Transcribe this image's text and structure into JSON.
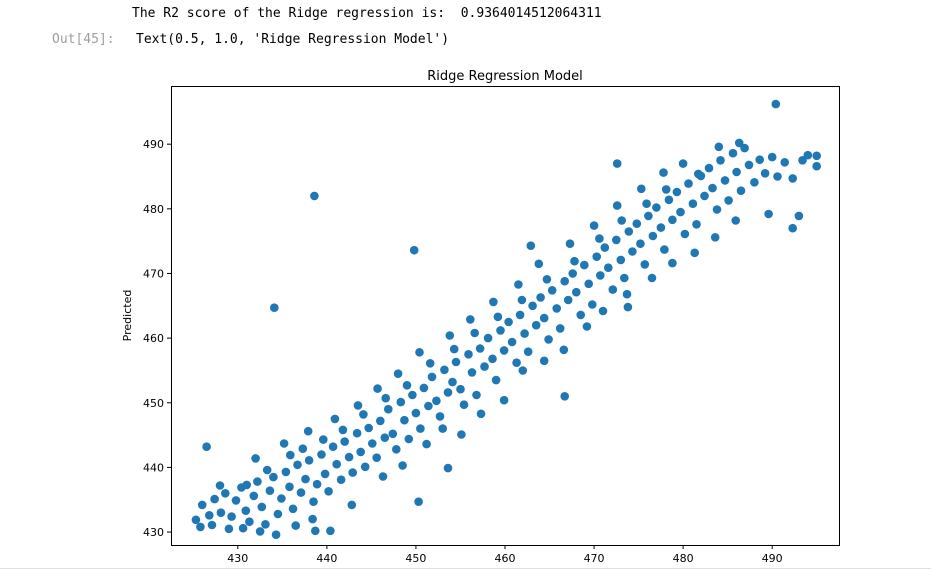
{
  "cell": {
    "stream_output": "The R2 score of the Ridge regression is:  0.9364014512064311",
    "out_prompt": "Out[45]:",
    "repr_output": "Text(0.5, 1.0, 'Ridge Regression Model')"
  },
  "chart_data": {
    "type": "scatter",
    "title": "Ridge Regression Model",
    "xlabel": "",
    "ylabel": "Predicted",
    "xlim": [
      422.5,
      497.5
    ],
    "ylim": [
      428.0,
      499.0
    ],
    "xticks": [
      430,
      440,
      450,
      460,
      470,
      480,
      490
    ],
    "yticks": [
      430,
      440,
      450,
      460,
      470,
      480,
      490
    ],
    "grid": false,
    "marker_color": "#1f77b4",
    "series": [
      {
        "points": [
          [
            425.3,
            431.9
          ],
          [
            426.0,
            434.2
          ],
          [
            426.8,
            432.6
          ],
          [
            427.4,
            435.1
          ],
          [
            428.1,
            433.0
          ],
          [
            428.6,
            436.0
          ],
          [
            429.3,
            432.4
          ],
          [
            429.8,
            434.9
          ],
          [
            430.4,
            436.9
          ],
          [
            430.9,
            433.3
          ],
          [
            431.3,
            431.6
          ],
          [
            431.8,
            435.6
          ],
          [
            432.2,
            437.8
          ],
          [
            432.7,
            433.9
          ],
          [
            433.1,
            431.2
          ],
          [
            433.6,
            436.4
          ],
          [
            434.0,
            438.5
          ],
          [
            434.5,
            432.8
          ],
          [
            434.9,
            435.2
          ],
          [
            435.4,
            439.3
          ],
          [
            435.8,
            437.0
          ],
          [
            436.2,
            433.6
          ],
          [
            436.7,
            440.4
          ],
          [
            437.1,
            436.1
          ],
          [
            437.6,
            438.2
          ],
          [
            438.0,
            441.1
          ],
          [
            438.5,
            434.7
          ],
          [
            438.9,
            437.4
          ],
          [
            439.4,
            442.0
          ],
          [
            439.8,
            439.0
          ],
          [
            440.2,
            436.3
          ],
          [
            440.7,
            443.2
          ],
          [
            441.1,
            440.5
          ],
          [
            441.6,
            438.1
          ],
          [
            442.0,
            444.0
          ],
          [
            442.5,
            441.6
          ],
          [
            442.9,
            439.2
          ],
          [
            443.4,
            445.3
          ],
          [
            443.8,
            442.4
          ],
          [
            444.3,
            440.1
          ],
          [
            444.7,
            446.1
          ],
          [
            445.1,
            443.7
          ],
          [
            445.6,
            441.5
          ],
          [
            446.0,
            447.2
          ],
          [
            446.5,
            444.6
          ],
          [
            446.9,
            449.0
          ],
          [
            447.4,
            445.2
          ],
          [
            447.8,
            442.8
          ],
          [
            448.3,
            450.1
          ],
          [
            448.7,
            447.3
          ],
          [
            449.2,
            444.4
          ],
          [
            449.6,
            451.2
          ],
          [
            450.0,
            448.4
          ],
          [
            450.5,
            446.0
          ],
          [
            450.9,
            452.3
          ],
          [
            451.4,
            449.5
          ],
          [
            451.8,
            454.0
          ],
          [
            452.3,
            450.3
          ],
          [
            452.7,
            447.9
          ],
          [
            453.2,
            455.1
          ],
          [
            453.6,
            451.6
          ],
          [
            454.1,
            453.2
          ],
          [
            454.5,
            456.3
          ],
          [
            455.0,
            452.1
          ],
          [
            455.4,
            449.7
          ],
          [
            455.9,
            457.5
          ],
          [
            456.3,
            454.7
          ],
          [
            456.8,
            451.2
          ],
          [
            457.2,
            458.4
          ],
          [
            457.7,
            455.6
          ],
          [
            458.1,
            460.0
          ],
          [
            458.6,
            456.8
          ],
          [
            459.0,
            453.5
          ],
          [
            459.5,
            461.2
          ],
          [
            459.9,
            458.1
          ],
          [
            460.4,
            462.5
          ],
          [
            460.8,
            459.4
          ],
          [
            461.3,
            456.2
          ],
          [
            461.7,
            463.6
          ],
          [
            462.2,
            460.7
          ],
          [
            462.6,
            457.9
          ],
          [
            463.1,
            465.0
          ],
          [
            463.5,
            462.0
          ],
          [
            464.0,
            466.3
          ],
          [
            464.4,
            463.1
          ],
          [
            464.9,
            459.8
          ],
          [
            465.3,
            467.4
          ],
          [
            465.8,
            464.6
          ],
          [
            466.2,
            461.5
          ],
          [
            466.7,
            468.8
          ],
          [
            467.1,
            465.9
          ],
          [
            467.6,
            470.0
          ],
          [
            468.0,
            467.1
          ],
          [
            468.5,
            463.6
          ],
          [
            468.9,
            471.3
          ],
          [
            469.4,
            468.4
          ],
          [
            469.8,
            465.2
          ],
          [
            470.3,
            472.6
          ],
          [
            470.7,
            469.7
          ],
          [
            471.2,
            474.0
          ],
          [
            471.6,
            470.9
          ],
          [
            472.1,
            467.5
          ],
          [
            472.5,
            475.2
          ],
          [
            473.0,
            472.1
          ],
          [
            473.4,
            469.3
          ],
          [
            473.9,
            476.5
          ],
          [
            474.3,
            473.4
          ],
          [
            474.8,
            477.7
          ],
          [
            475.2,
            474.6
          ],
          [
            475.7,
            471.4
          ],
          [
            476.1,
            478.9
          ],
          [
            476.6,
            475.8
          ],
          [
            477.0,
            480.2
          ],
          [
            477.5,
            477.1
          ],
          [
            477.9,
            473.7
          ],
          [
            478.4,
            481.4
          ],
          [
            478.8,
            478.3
          ],
          [
            479.3,
            482.6
          ],
          [
            479.7,
            479.5
          ],
          [
            480.2,
            476.1
          ],
          [
            480.6,
            483.9
          ],
          [
            481.1,
            480.8
          ],
          [
            481.5,
            477.6
          ],
          [
            482.0,
            485.1
          ],
          [
            482.4,
            482.0
          ],
          [
            482.9,
            486.3
          ],
          [
            483.3,
            483.2
          ],
          [
            483.8,
            479.9
          ],
          [
            484.2,
            487.5
          ],
          [
            484.7,
            484.4
          ],
          [
            485.1,
            481.3
          ],
          [
            485.6,
            488.6
          ],
          [
            486.0,
            485.7
          ],
          [
            486.5,
            482.8
          ],
          [
            486.9,
            489.4
          ],
          [
            487.4,
            486.8
          ],
          [
            488.0,
            484.1
          ],
          [
            488.6,
            487.6
          ],
          [
            489.2,
            485.5
          ],
          [
            490.0,
            488.0
          ],
          [
            490.6,
            485.0
          ],
          [
            491.4,
            487.2
          ],
          [
            492.3,
            484.7
          ],
          [
            493.4,
            487.5
          ],
          [
            494.0,
            488.3
          ],
          [
            495.0,
            486.6
          ],
          [
            428.0,
            437.2
          ],
          [
            430.6,
            430.6
          ],
          [
            432.5,
            430.1
          ],
          [
            434.3,
            429.6
          ],
          [
            436.5,
            431.0
          ],
          [
            438.4,
            432.0
          ],
          [
            440.4,
            430.2
          ],
          [
            442.8,
            434.2
          ],
          [
            446.3,
            438.6
          ],
          [
            448.5,
            440.3
          ],
          [
            451.2,
            443.6
          ],
          [
            453.0,
            446.0
          ],
          [
            455.1,
            445.1
          ],
          [
            457.3,
            448.3
          ],
          [
            459.9,
            450.4
          ],
          [
            462.0,
            455.0
          ],
          [
            464.4,
            456.5
          ],
          [
            466.6,
            458.2
          ],
          [
            469.2,
            461.8
          ],
          [
            471.0,
            464.2
          ],
          [
            473.7,
            466.8
          ],
          [
            476.5,
            469.3
          ],
          [
            478.8,
            471.6
          ],
          [
            481.3,
            473.2
          ],
          [
            483.6,
            475.6
          ],
          [
            485.9,
            478.2
          ],
          [
            432.0,
            441.4
          ],
          [
            435.2,
            443.7
          ],
          [
            437.9,
            445.6
          ],
          [
            440.9,
            447.5
          ],
          [
            443.5,
            449.6
          ],
          [
            445.7,
            452.2
          ],
          [
            448.0,
            454.5
          ],
          [
            450.4,
            457.8
          ],
          [
            453.8,
            460.4
          ],
          [
            456.1,
            462.9
          ],
          [
            458.7,
            465.6
          ],
          [
            461.5,
            468.3
          ],
          [
            463.8,
            471.5
          ],
          [
            467.3,
            474.6
          ],
          [
            470.0,
            477.4
          ],
          [
            472.6,
            480.5
          ],
          [
            475.3,
            483.1
          ],
          [
            477.8,
            485.6
          ],
          [
            480.0,
            487.0
          ],
          [
            425.8,
            430.8
          ],
          [
            427.1,
            431.1
          ],
          [
            429.0,
            430.5
          ],
          [
            431.0,
            437.3
          ],
          [
            433.3,
            439.6
          ],
          [
            435.9,
            441.9
          ],
          [
            437.3,
            442.9
          ],
          [
            439.6,
            444.3
          ],
          [
            441.8,
            445.8
          ],
          [
            444.1,
            448.2
          ],
          [
            446.6,
            450.7
          ],
          [
            449.0,
            452.7
          ],
          [
            451.6,
            456.1
          ],
          [
            454.3,
            458.3
          ],
          [
            456.6,
            460.8
          ],
          [
            459.2,
            463.3
          ],
          [
            461.9,
            465.9
          ],
          [
            464.7,
            469.1
          ],
          [
            467.8,
            471.9
          ],
          [
            470.6,
            475.4
          ],
          [
            473.1,
            478.2
          ],
          [
            475.9,
            480.8
          ],
          [
            478.1,
            483.0
          ],
          [
            481.7,
            485.4
          ],
          [
            484.0,
            489.6
          ],
          [
            486.3,
            490.2
          ],
          [
            434.1,
            464.7
          ],
          [
            438.6,
            482.0
          ],
          [
            449.8,
            473.6
          ],
          [
            472.6,
            487.0
          ],
          [
            490.4,
            496.2
          ],
          [
            426.5,
            443.2
          ],
          [
            466.7,
            451.0
          ],
          [
            450.3,
            434.7
          ],
          [
            438.7,
            430.2
          ],
          [
            453.6,
            439.9
          ],
          [
            492.3,
            477.0
          ],
          [
            493.0,
            478.9
          ],
          [
            495.0,
            488.2
          ],
          [
            489.6,
            479.2
          ],
          [
            462.9,
            474.3
          ],
          [
            473.8,
            464.8
          ]
        ]
      }
    ]
  }
}
